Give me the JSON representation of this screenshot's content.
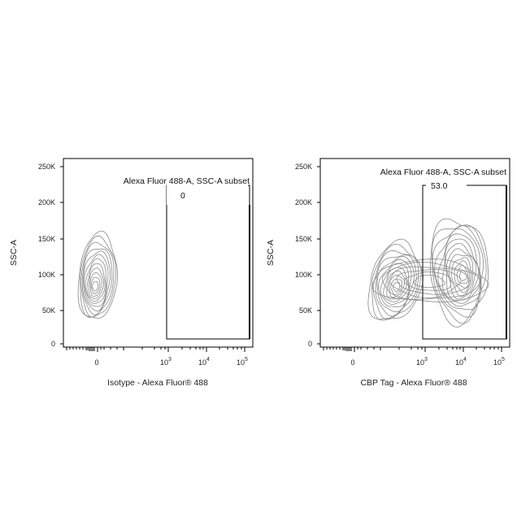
{
  "chart_data": [
    {
      "type": "contour",
      "xlabel": "Isotype - Alexa Fluor® 488",
      "ylabel": "SSC-A",
      "y_ticks": [
        {
          "value": 0,
          "label": "0"
        },
        {
          "value": 50000,
          "label": "50K"
        },
        {
          "value": 100000,
          "label": "100K"
        },
        {
          "value": 150000,
          "label": "150K"
        },
        {
          "value": 200000,
          "label": "200K"
        },
        {
          "value": 250000,
          "label": "250K"
        }
      ],
      "x_ticks": [
        {
          "value": 0,
          "base": "0",
          "exp": ""
        },
        {
          "value": 1000,
          "base": "10",
          "exp": "3"
        },
        {
          "value": 10000,
          "base": "10",
          "exp": "4"
        },
        {
          "value": 100000,
          "base": "10",
          "exp": "5"
        }
      ],
      "x_scale": "biexponential",
      "ylim": [
        0,
        262144
      ],
      "gate": {
        "name": "Alexa Fluor 488-A, SSC-A subset",
        "percent": "0",
        "x_range": [
          1200,
          150000
        ],
        "y_range": [
          8000,
          222000
        ]
      },
      "populations": [
        {
          "center_x": 0,
          "center_y": 85000,
          "spread_x": 0.3,
          "spread_y": 60000,
          "levels": 12
        }
      ]
    },
    {
      "type": "contour",
      "xlabel": "CBP Tag - Alexa Fluor® 488",
      "ylabel": "SSC-A",
      "y_ticks": [
        {
          "value": 0,
          "label": "0"
        },
        {
          "value": 50000,
          "label": "50K"
        },
        {
          "value": 100000,
          "label": "100K"
        },
        {
          "value": 150000,
          "label": "150K"
        },
        {
          "value": 200000,
          "label": "200K"
        },
        {
          "value": 250000,
          "label": "250K"
        }
      ],
      "x_ticks": [
        {
          "value": 0,
          "base": "0",
          "exp": ""
        },
        {
          "value": 1000,
          "base": "10",
          "exp": "3"
        },
        {
          "value": 10000,
          "base": "10",
          "exp": "4"
        },
        {
          "value": 100000,
          "base": "10",
          "exp": "5"
        }
      ],
      "x_scale": "biexponential",
      "ylim": [
        0,
        262144
      ],
      "gate": {
        "name": "Alexa Fluor 488-A, SSC-A subset",
        "percent": "53.0",
        "x_range": [
          1200,
          150000
        ],
        "y_range": [
          8000,
          222000
        ]
      },
      "populations": [
        {
          "center_x": 300,
          "center_y": 80000,
          "levels": 12
        },
        {
          "center_x": 15000,
          "center_y": 100000,
          "levels": 13
        }
      ]
    }
  ]
}
